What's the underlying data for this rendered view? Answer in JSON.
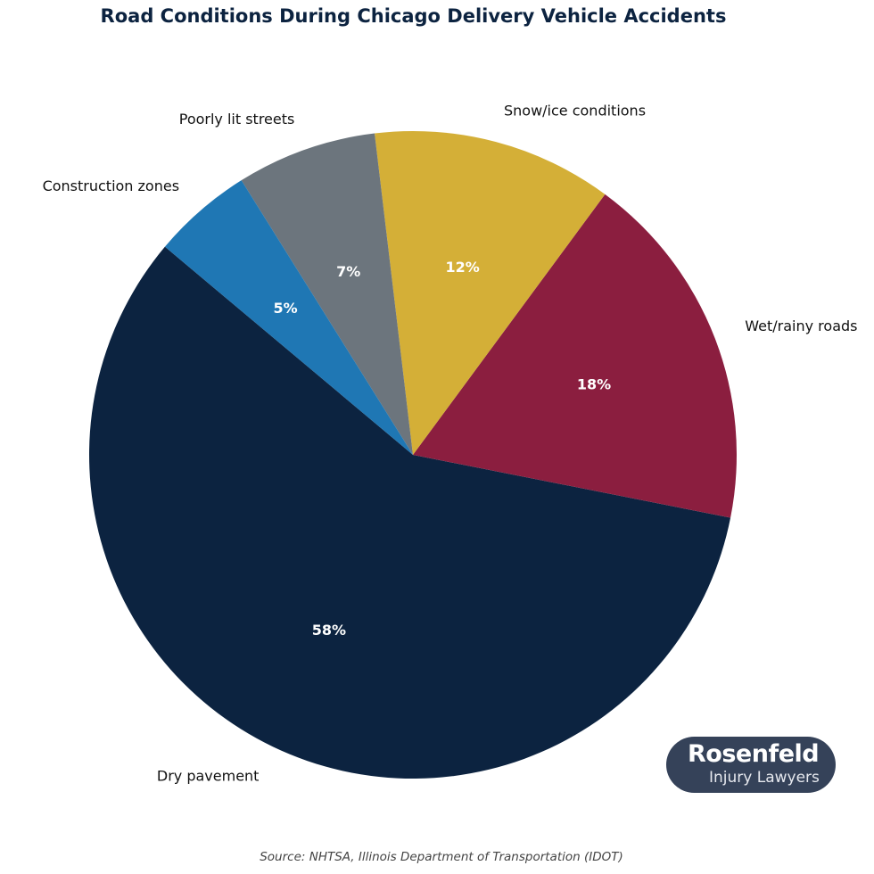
{
  "chart_data": {
    "type": "pie",
    "title": "Road Conditions During Chicago Delivery Vehicle Accidents",
    "categories": [
      "Dry pavement",
      "Wet/rainy roads",
      "Snow/ice conditions",
      "Poorly lit streets",
      "Construction zones"
    ],
    "values": [
      58,
      18,
      12,
      7,
      5
    ],
    "labels_pct": [
      "58%",
      "18%",
      "12%",
      "7%",
      "5%"
    ],
    "colors": [
      "#0c2340",
      "#8b1e3f",
      "#d4af37",
      "#6c757d",
      "#1f77b4"
    ],
    "start_angle_deg": 140,
    "direction": "counterclockwise",
    "source": "Source: NHTSA, Illinois Department of Transportation (IDOT)"
  },
  "logo": {
    "name": "Rosenfeld",
    "tagline": "Injury Lawyers"
  }
}
